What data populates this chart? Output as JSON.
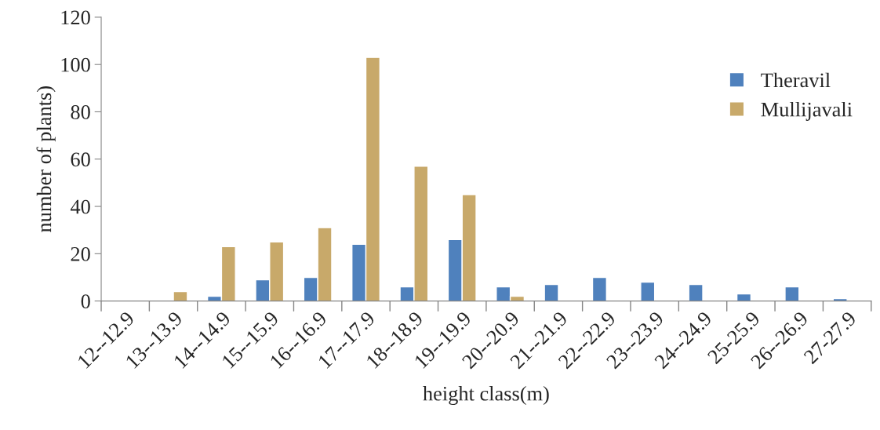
{
  "chart_data": {
    "type": "bar",
    "xlabel": "height class(m)",
    "ylabel": "number of plants)",
    "categories": [
      "12--12.9",
      "13--13.9",
      "14--14.9",
      "15--15.9",
      "16--16.9",
      "17--17.9",
      "18--18.9",
      "19--19.9",
      "20--20.9",
      "21--21.9",
      "22--22.9",
      "23--23.9",
      "24--24.9",
      "25-25.9",
      "26--26.9",
      "27-27.9"
    ],
    "series": [
      {
        "name": "Theravil",
        "color": "#4f81bd",
        "values": [
          null,
          null,
          2,
          9,
          10,
          24,
          6,
          26,
          6,
          7,
          10,
          8,
          7,
          3,
          6,
          1
        ]
      },
      {
        "name": "Mullijavali",
        "color": "#c8a96a",
        "values": [
          null,
          4,
          23,
          25,
          31,
          103,
          57,
          45,
          2,
          null,
          null,
          null,
          null,
          null,
          null,
          null
        ]
      }
    ],
    "ylim": [
      0,
      120
    ],
    "yticks": [
      0,
      20,
      40,
      60,
      80,
      100,
      120
    ],
    "grid": false,
    "legend": "right"
  }
}
